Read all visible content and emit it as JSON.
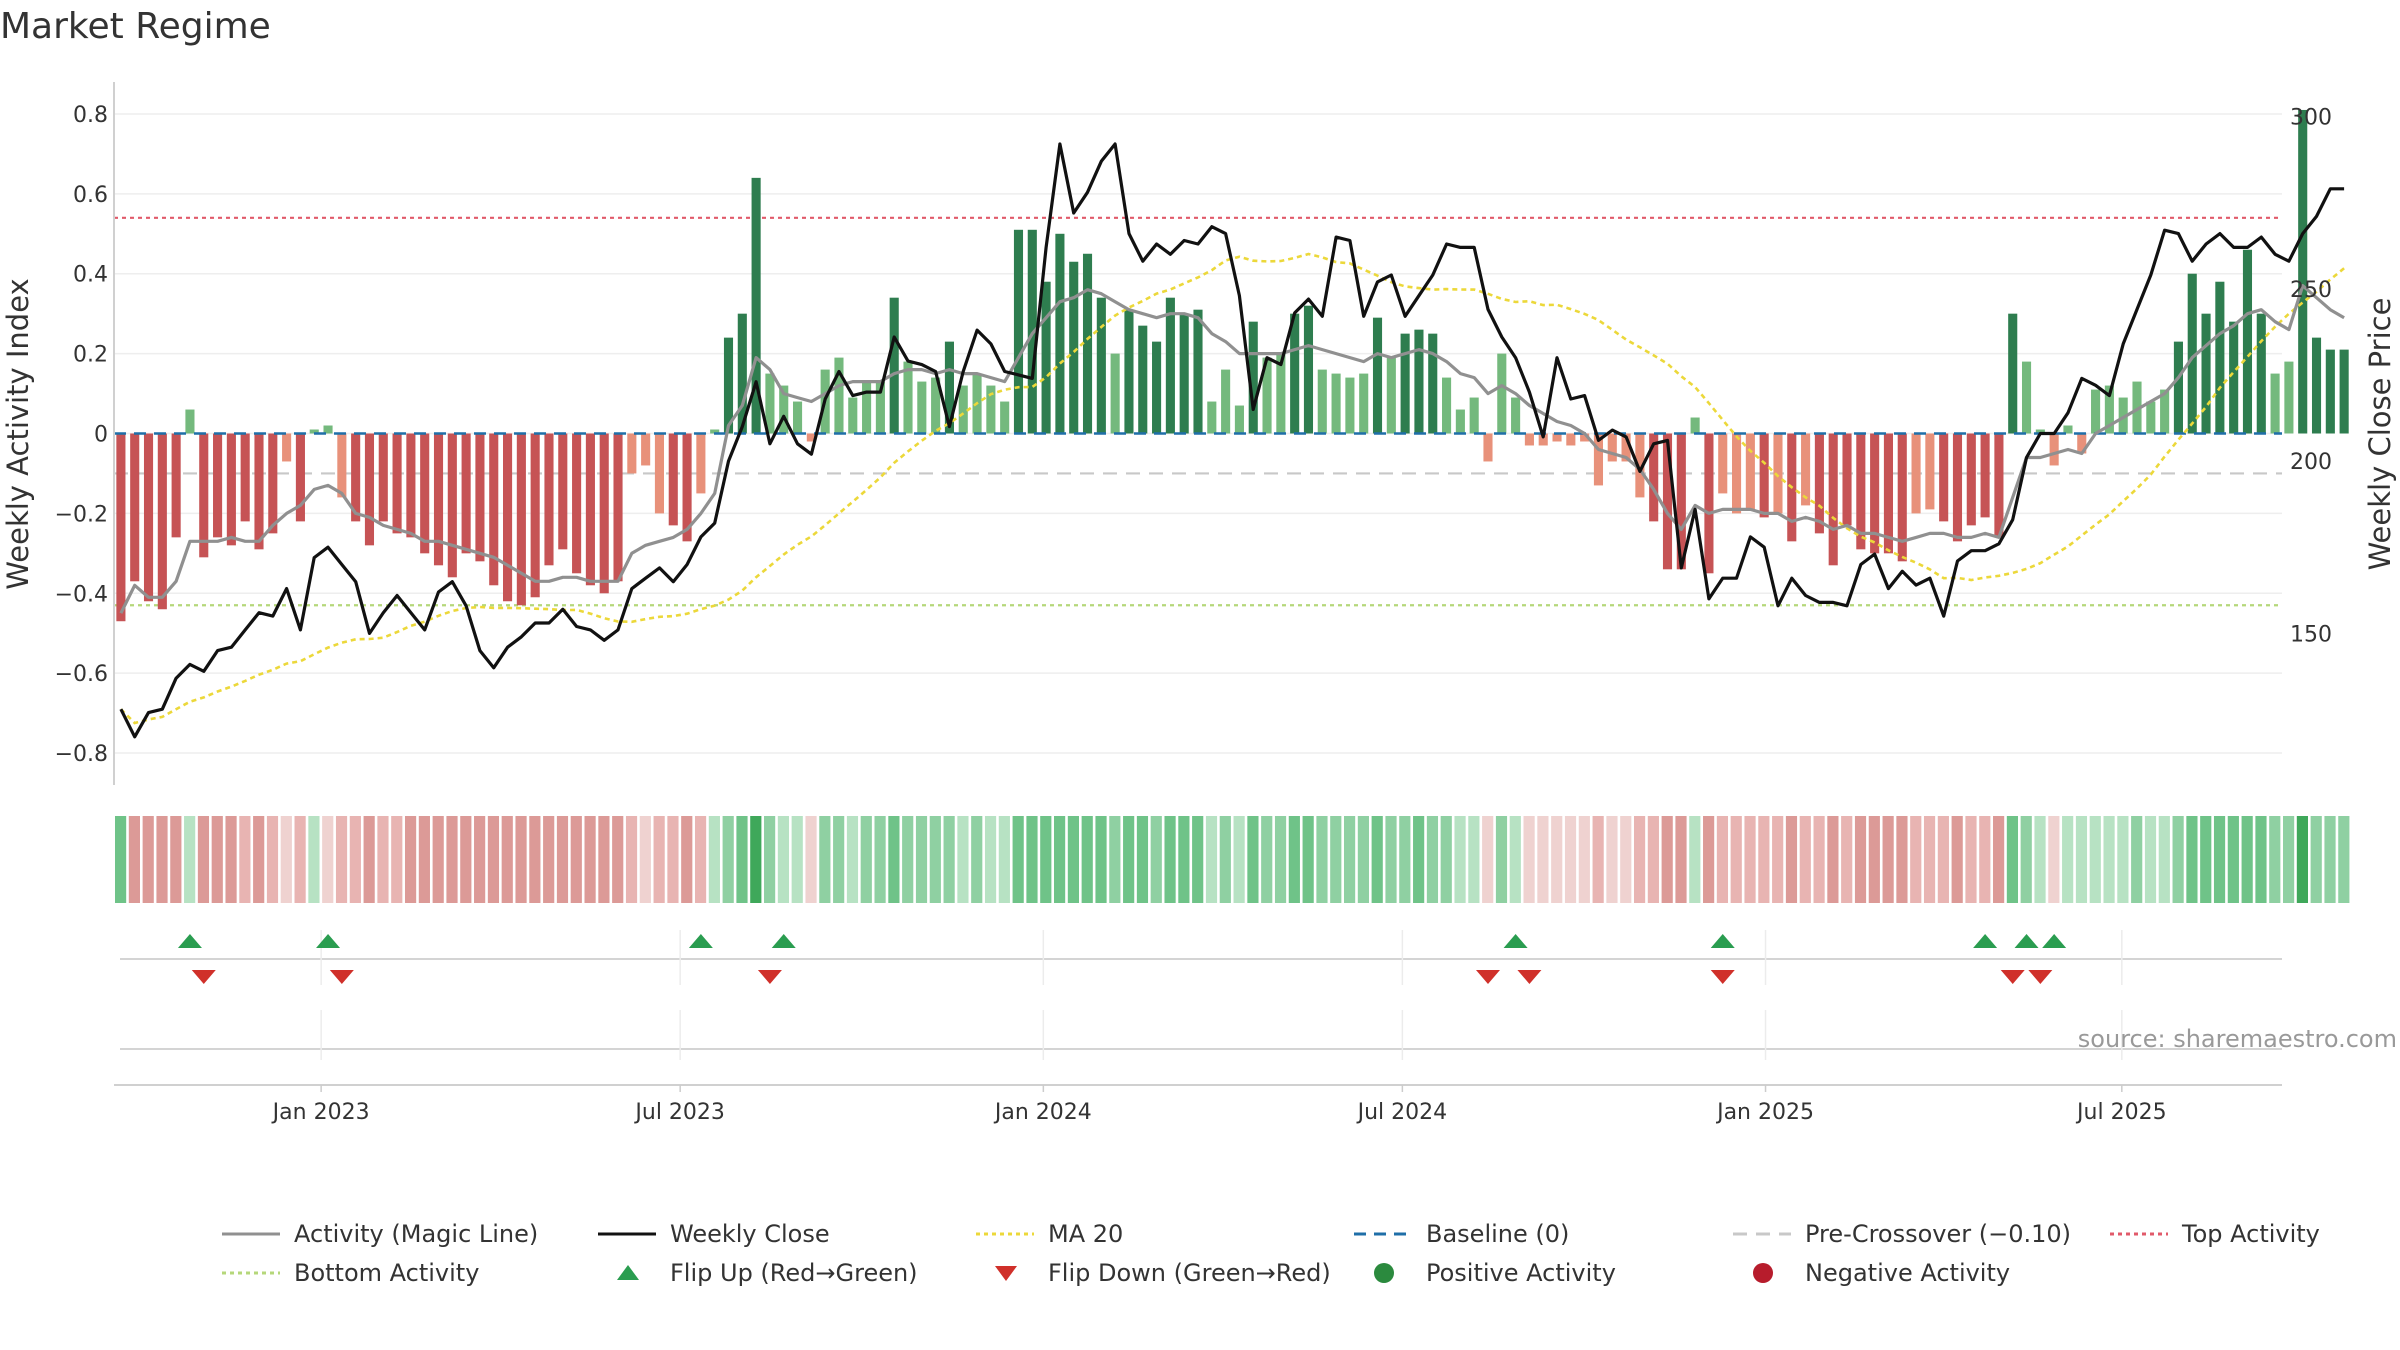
{
  "chart_data": {
    "type": "bar",
    "title": "Market Regime",
    "ylabel_left": "Weekly Activity Index",
    "ylabel_right": "Weekly Close Price",
    "source": "source: sharemaestro.com",
    "ylim_left": [
      -0.88,
      0.88
    ],
    "ylim_right": [
      106,
      310
    ],
    "yticks_left": [
      0.8,
      0.6,
      0.4,
      0.2,
      0,
      -0.2,
      -0.4,
      -0.6,
      -0.8
    ],
    "ytick_labels_left": [
      "0.8",
      "0.6",
      "0.4",
      "0.2",
      "0",
      "−0.2",
      "−0.4",
      "−0.6",
      "−0.8"
    ],
    "yticks_right": [
      300,
      250,
      200,
      150
    ],
    "ytick_labels_right": [
      "300",
      "250",
      "200",
      "150"
    ],
    "x_range_weeks": [
      0,
      157
    ],
    "xticks": [
      {
        "label": "Jan 2023",
        "week": 15
      },
      {
        "label": "Jul 2023",
        "week": 41
      },
      {
        "label": "Jan 2024",
        "week": 67.3
      },
      {
        "label": "Jul 2024",
        "week": 93.3
      },
      {
        "label": "Jan 2025",
        "week": 119.6
      },
      {
        "label": "Jul 2025",
        "week": 145.4
      }
    ],
    "reference_lines": {
      "top_activity": 0.54,
      "bottom_activity": -0.43,
      "baseline": 0,
      "pre_crossover": -0.1
    },
    "activity_bars": [
      -0.47,
      -0.37,
      -0.42,
      -0.44,
      -0.26,
      0.06,
      -0.31,
      -0.26,
      -0.28,
      -0.22,
      -0.29,
      -0.25,
      -0.07,
      -0.22,
      0.01,
      0.02,
      -0.16,
      -0.22,
      -0.28,
      -0.22,
      -0.25,
      -0.26,
      -0.3,
      -0.33,
      -0.36,
      -0.3,
      -0.32,
      -0.38,
      -0.42,
      -0.43,
      -0.41,
      -0.33,
      -0.29,
      -0.35,
      -0.38,
      -0.4,
      -0.37,
      -0.1,
      -0.08,
      -0.2,
      -0.23,
      -0.27,
      -0.15,
      0.01,
      0.24,
      0.3,
      0.64,
      0.15,
      0.12,
      0.08,
      -0.02,
      0.16,
      0.19,
      0.09,
      0.13,
      0.13,
      0.34,
      0.18,
      0.13,
      0.14,
      0.23,
      0.12,
      0.15,
      0.12,
      0.08,
      0.51,
      0.51,
      0.38,
      0.5,
      0.43,
      0.45,
      0.34,
      0.2,
      0.31,
      0.27,
      0.23,
      0.34,
      0.3,
      0.31,
      0.08,
      0.16,
      0.07,
      0.28,
      0.19,
      0.2,
      0.3,
      0.32,
      0.16,
      0.15,
      0.14,
      0.15,
      0.29,
      0.19,
      0.25,
      0.26,
      0.25,
      0.14,
      0.06,
      0.09,
      -0.07,
      0.2,
      0.09,
      -0.03,
      -0.03,
      -0.02,
      -0.03,
      -0.02,
      -0.13,
      -0.07,
      -0.07,
      -0.16,
      -0.22,
      -0.34,
      -0.34,
      0.04,
      -0.35,
      -0.15,
      -0.2,
      -0.19,
      -0.21,
      -0.2,
      -0.27,
      -0.18,
      -0.25,
      -0.33,
      -0.23,
      -0.29,
      -0.3,
      -0.3,
      -0.32,
      -0.2,
      -0.19,
      -0.22,
      -0.27,
      -0.23,
      -0.21,
      -0.26,
      0.3,
      0.18,
      0.01,
      -0.08,
      0.02,
      -0.05,
      0.11,
      0.12,
      0.09,
      0.13,
      0.08,
      0.11,
      0.23,
      0.4,
      0.3,
      0.38,
      0.28,
      0.46,
      0.3,
      0.15,
      0.18,
      0.81,
      0.24,
      0.21,
      0.21
    ],
    "magic_line": [
      -0.45,
      -0.38,
      -0.41,
      -0.41,
      -0.37,
      -0.27,
      -0.27,
      -0.27,
      -0.26,
      -0.27,
      -0.27,
      -0.23,
      -0.2,
      -0.18,
      -0.14,
      -0.13,
      -0.15,
      -0.2,
      -0.21,
      -0.23,
      -0.24,
      -0.25,
      -0.27,
      -0.27,
      -0.28,
      -0.29,
      -0.3,
      -0.31,
      -0.33,
      -0.35,
      -0.37,
      -0.37,
      -0.36,
      -0.36,
      -0.37,
      -0.37,
      -0.37,
      -0.3,
      -0.28,
      -0.27,
      -0.26,
      -0.24,
      -0.2,
      -0.15,
      0.02,
      0.07,
      0.19,
      0.16,
      0.1,
      0.09,
      0.08,
      0.1,
      0.12,
      0.13,
      0.13,
      0.13,
      0.15,
      0.16,
      0.16,
      0.15,
      0.16,
      0.15,
      0.15,
      0.14,
      0.13,
      0.19,
      0.25,
      0.29,
      0.33,
      0.34,
      0.36,
      0.35,
      0.33,
      0.31,
      0.3,
      0.29,
      0.3,
      0.3,
      0.29,
      0.25,
      0.23,
      0.2,
      0.2,
      0.2,
      0.2,
      0.21,
      0.22,
      0.21,
      0.2,
      0.19,
      0.18,
      0.2,
      0.19,
      0.2,
      0.21,
      0.2,
      0.18,
      0.15,
      0.14,
      0.1,
      0.12,
      0.1,
      0.07,
      0.05,
      0.03,
      0.02,
      0.0,
      -0.04,
      -0.05,
      -0.06,
      -0.09,
      -0.14,
      -0.2,
      -0.24,
      -0.18,
      -0.2,
      -0.19,
      -0.19,
      -0.19,
      -0.2,
      -0.2,
      -0.22,
      -0.21,
      -0.22,
      -0.24,
      -0.23,
      -0.25,
      -0.25,
      -0.26,
      -0.27,
      -0.26,
      -0.25,
      -0.25,
      -0.26,
      -0.26,
      -0.25,
      -0.26,
      -0.16,
      -0.06,
      -0.06,
      -0.05,
      -0.04,
      -0.05,
      0.0,
      0.02,
      0.04,
      0.06,
      0.08,
      0.1,
      0.14,
      0.19,
      0.22,
      0.25,
      0.27,
      0.3,
      0.31,
      0.28,
      0.26,
      0.37,
      0.34,
      0.31,
      0.29
    ],
    "weekly_close": [
      128,
      120,
      127,
      128,
      137,
      141,
      139,
      145,
      146,
      151,
      156,
      155,
      163,
      151,
      172,
      175,
      170,
      165,
      150,
      156,
      161,
      156,
      151,
      162,
      165,
      158,
      145,
      140,
      146,
      149,
      153,
      153,
      157,
      152,
      151,
      148,
      151,
      163,
      166,
      169,
      165,
      170,
      178,
      182,
      200,
      210,
      223,
      205,
      213,
      205,
      202,
      218,
      226,
      219,
      220,
      220,
      236,
      229,
      228,
      226,
      210,
      226,
      238,
      234,
      226,
      225,
      224,
      262,
      292,
      272,
      278,
      287,
      292,
      266,
      258,
      263,
      260,
      264,
      263,
      268,
      266,
      248,
      215,
      230,
      228,
      243,
      247,
      242,
      265,
      264,
      242,
      252,
      254,
      242,
      248,
      254,
      263,
      262,
      262,
      244,
      236,
      230,
      220,
      207,
      230,
      218,
      219,
      206,
      209,
      207,
      197,
      205,
      206,
      169,
      186,
      160,
      166,
      166,
      178,
      175,
      158,
      166,
      161,
      159,
      159,
      158,
      170,
      173,
      163,
      168,
      164,
      166,
      155,
      171,
      174,
      174,
      176,
      183,
      201,
      208,
      208,
      214,
      224,
      222,
      219,
      234,
      244,
      254,
      267,
      266,
      258,
      263,
      266,
      262,
      262,
      265,
      260,
      258,
      266,
      271,
      279,
      279
    ]
  },
  "regime_strip": {
    "shades": [
      2,
      -1,
      -1,
      -1,
      -1,
      1,
      -1,
      -1,
      -1,
      -1,
      -1,
      -1,
      -1,
      -1,
      1,
      -1,
      -1,
      -1,
      -1,
      -1,
      -1,
      -1,
      -1,
      -1,
      -1,
      -1,
      -1,
      -1,
      -1,
      -1,
      -1,
      -1,
      -1,
      -1,
      -1,
      -1,
      -1,
      -1,
      -1,
      -1,
      -1,
      -1,
      -1,
      1,
      1,
      1,
      3,
      1,
      1,
      1,
      -1,
      1,
      1,
      1,
      1,
      1,
      1,
      1,
      1,
      1,
      1,
      1,
      1,
      1,
      1,
      2,
      2,
      2,
      2,
      2,
      2,
      2,
      1,
      1,
      1,
      1,
      1,
      1,
      1,
      1,
      1,
      1,
      2,
      1,
      1,
      1,
      1,
      1,
      1,
      1,
      1,
      1,
      1,
      1,
      1,
      1,
      1,
      1,
      1,
      -1,
      1,
      1,
      -1,
      -1,
      -1,
      -1,
      -1,
      -1,
      -1,
      -1,
      -1,
      -1,
      -1,
      -1,
      1,
      -1,
      -1,
      -1,
      -1,
      -1,
      -1,
      -1,
      -1,
      -1,
      -1,
      -1,
      -1,
      -1,
      -1,
      -1,
      -1,
      -1,
      -1,
      -1,
      -1,
      -1,
      -1,
      1,
      1,
      1,
      -1,
      1,
      1,
      1,
      1,
      1,
      1,
      1,
      1,
      1,
      2,
      2,
      2,
      1,
      2,
      2,
      1,
      1,
      3,
      1,
      1,
      1
    ],
    "colors": {
      "green_light": "#b7e2c3",
      "green_mid": "#8fd0a2",
      "green_dark": "#6fc388",
      "green_strong": "#3fa85a",
      "red_light": "#efd2d0",
      "red_mid": "#e8b4b2",
      "red_dark": "#dc9a97"
    }
  },
  "flips": {
    "up": [
      5,
      15,
      42,
      48,
      101,
      116,
      135,
      138,
      140
    ],
    "down": [
      6,
      16,
      47,
      99,
      102,
      116,
      137,
      139
    ]
  },
  "legend": [
    {
      "label": "Activity (Magic Line)",
      "kind": "line",
      "color": "#909090",
      "dash": ""
    },
    {
      "label": "Weekly Close",
      "kind": "line",
      "color": "#111111",
      "dash": ""
    },
    {
      "label": "MA 20",
      "kind": "line",
      "color": "#ecd83a",
      "dash": "4,4"
    },
    {
      "label": "Baseline (0)",
      "kind": "line",
      "color": "#1f6fa8",
      "dash": "12,8"
    },
    {
      "label": "Pre-Crossover (−0.10)",
      "kind": "line",
      "color": "#c8c8c8",
      "dash": "14,9"
    },
    {
      "label": "Top Activity",
      "kind": "line",
      "color": "#e15a6a",
      "dash": "4,4"
    },
    {
      "label": "Bottom Activity",
      "kind": "line",
      "color": "#b5d77a",
      "dash": "4,4"
    },
    {
      "label": "Flip Up (Red→Green)",
      "kind": "tri-up",
      "color": "#2a9d50",
      "dash": ""
    },
    {
      "label": "Flip Down (Green→Red)",
      "kind": "tri-down",
      "color": "#d0302a",
      "dash": ""
    },
    {
      "label": "Positive Activity",
      "kind": "dot",
      "color": "#2b8a3e",
      "dash": ""
    },
    {
      "label": "Negative Activity",
      "kind": "dot",
      "color": "#b71c2c",
      "dash": ""
    }
  ],
  "colors": {
    "pos_strong": "#2e7d4f",
    "pos_light": "#74b97d",
    "neg_strong": "#c65355",
    "neg_light": "#e8917a",
    "magic": "#909090",
    "close": "#111111",
    "ma20": "#ecd83a",
    "top": "#e15a6a",
    "bottom": "#b5d77a",
    "baseline": "#1f6fa8",
    "precross": "#c8c8c8",
    "flip_up": "#2a9d50",
    "flip_down": "#d0302a"
  }
}
